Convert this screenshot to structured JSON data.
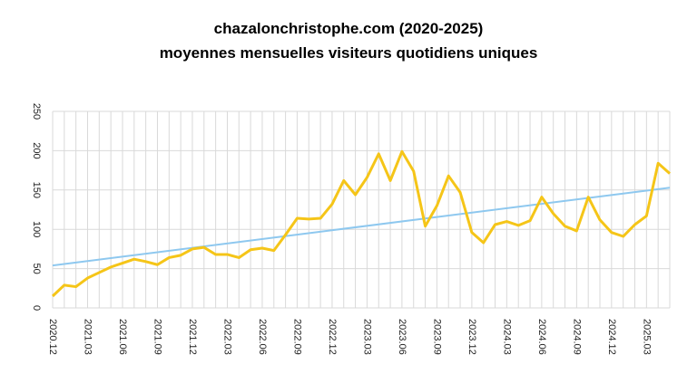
{
  "chart_data": {
    "type": "line",
    "title": "chazalonchristophe.com (2020-2025)",
    "subtitle": "moyennes mensuelles visiteurs quotidiens uniques",
    "categories": [
      "2020.12",
      null,
      null,
      "2021.03",
      null,
      null,
      "2021.06",
      null,
      null,
      "2021.09",
      null,
      null,
      "2021.12",
      null,
      null,
      "2022.03",
      null,
      null,
      "2022.06",
      null,
      null,
      "2022.09",
      null,
      null,
      "2022.12",
      null,
      null,
      "2023.03",
      null,
      null,
      "2023.06",
      null,
      null,
      "2023.09",
      null,
      null,
      "2023.12",
      null,
      null,
      "2024.03",
      null,
      null,
      "2024.06",
      null,
      null,
      "2024.09",
      null,
      null,
      "2024.12",
      null,
      null,
      "2025.03",
      null,
      null
    ],
    "series": [
      {
        "color": "#f5c518",
        "values": [
          15,
          29,
          27,
          38,
          45,
          52,
          57,
          62,
          59,
          55,
          64,
          67,
          75,
          77,
          68,
          68,
          64,
          74,
          76,
          73,
          93,
          114,
          113,
          114,
          132,
          162,
          144,
          166,
          196,
          162,
          199,
          174,
          104,
          130,
          168,
          147,
          96,
          83,
          106,
          110,
          105,
          111,
          141,
          120,
          104,
          98,
          141,
          112,
          96,
          91,
          106,
          117,
          184,
          171
        ]
      }
    ],
    "trendline": {
      "color": "#8ec8ef",
      "values": [
        54,
        153
      ]
    },
    "ylim": [
      0,
      250
    ],
    "yticks": [
      0,
      50,
      100,
      150,
      200,
      250
    ],
    "grid": true
  }
}
